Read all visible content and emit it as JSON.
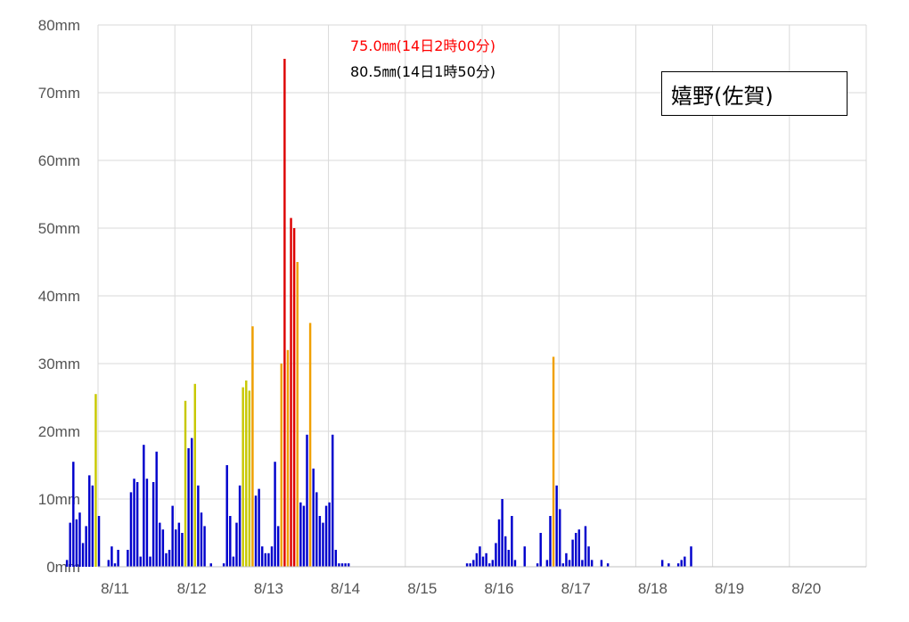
{
  "chart_data": {
    "type": "bar",
    "station": "嬉野(佐賀)",
    "ylim": [
      0,
      80
    ],
    "y_ticks": [
      "0mm",
      "10mm",
      "20mm",
      "30mm",
      "40mm",
      "50mm",
      "60mm",
      "70mm",
      "80mm"
    ],
    "day_labels": [
      "8/11",
      "8/12",
      "8/13",
      "8/14",
      "8/15",
      "8/16",
      "8/17",
      "8/18",
      "8/19",
      "8/20"
    ],
    "x_unit": "hour since 8/11 00:00",
    "grid": true,
    "annotations": {
      "max_1h": "75.0㎜(14日2時00分)",
      "max_10min_based": "80.5㎜(14日1時50分)"
    },
    "colors": {
      "lt20": "#0000cc",
      "20to30": "#c8c800",
      "30to50": "#f0a000",
      "ge50": "#dd0000",
      "grid": "#d9d9d9",
      "annotation_red": "#ff0000"
    },
    "bars": [
      [
        -3,
        1
      ],
      [
        -2,
        6.5
      ],
      [
        -1,
        15.5
      ],
      [
        0,
        7
      ],
      [
        1,
        8
      ],
      [
        2,
        3.5
      ],
      [
        3,
        6
      ],
      [
        4,
        13.5
      ],
      [
        5,
        12
      ],
      [
        6,
        25.5
      ],
      [
        7,
        7.5
      ],
      [
        10,
        1
      ],
      [
        11,
        3
      ],
      [
        12,
        0.5
      ],
      [
        13,
        2.5
      ],
      [
        16,
        2.5
      ],
      [
        17,
        11
      ],
      [
        18,
        13
      ],
      [
        19,
        12.5
      ],
      [
        20,
        1.5
      ],
      [
        21,
        18
      ],
      [
        22,
        13
      ],
      [
        23,
        1.5
      ],
      [
        24,
        12.5
      ],
      [
        25,
        17
      ],
      [
        26,
        6.5
      ],
      [
        27,
        5.5
      ],
      [
        28,
        2
      ],
      [
        29,
        2.5
      ],
      [
        30,
        9
      ],
      [
        31,
        5.5
      ],
      [
        32,
        6.5
      ],
      [
        33,
        5
      ],
      [
        34,
        24.5
      ],
      [
        35,
        17.5
      ],
      [
        36,
        19
      ],
      [
        37,
        27
      ],
      [
        38,
        12
      ],
      [
        39,
        8
      ],
      [
        40,
        6
      ],
      [
        42,
        0.5
      ],
      [
        46,
        0.5
      ],
      [
        47,
        15
      ],
      [
        48,
        7.5
      ],
      [
        49,
        1.5
      ],
      [
        50,
        6.5
      ],
      [
        51,
        12
      ],
      [
        52,
        26.5
      ],
      [
        53,
        27.5
      ],
      [
        54,
        26
      ],
      [
        55,
        35.5
      ],
      [
        56,
        10.5
      ],
      [
        57,
        11.5
      ],
      [
        58,
        3
      ],
      [
        59,
        2
      ],
      [
        60,
        2
      ],
      [
        61,
        3
      ],
      [
        62,
        15.5
      ],
      [
        63,
        6
      ],
      [
        64,
        30
      ],
      [
        65,
        75
      ],
      [
        66,
        32
      ],
      [
        67,
        51.5
      ],
      [
        68,
        50
      ],
      [
        69,
        45
      ],
      [
        70,
        9.5
      ],
      [
        71,
        9
      ],
      [
        72,
        19.5
      ],
      [
        73,
        36
      ],
      [
        74,
        14.5
      ],
      [
        75,
        11
      ],
      [
        76,
        7.5
      ],
      [
        77,
        6.5
      ],
      [
        78,
        9
      ],
      [
        79,
        9.5
      ],
      [
        80,
        19.5
      ],
      [
        81,
        2.5
      ],
      [
        82,
        0.5
      ],
      [
        83,
        0.5
      ],
      [
        84,
        0.5
      ],
      [
        85,
        0.5
      ],
      [
        122,
        0.5
      ],
      [
        123,
        0.5
      ],
      [
        124,
        1
      ],
      [
        125,
        2
      ],
      [
        126,
        3
      ],
      [
        127,
        1.5
      ],
      [
        128,
        2
      ],
      [
        129,
        0.5
      ],
      [
        130,
        1
      ],
      [
        131,
        3.5
      ],
      [
        132,
        7
      ],
      [
        133,
        10
      ],
      [
        134,
        4.5
      ],
      [
        135,
        2.5
      ],
      [
        136,
        7.5
      ],
      [
        137,
        1
      ],
      [
        140,
        3
      ],
      [
        144,
        0.5
      ],
      [
        145,
        5
      ],
      [
        147,
        1
      ],
      [
        148,
        7.5
      ],
      [
        149,
        31
      ],
      [
        150,
        12
      ],
      [
        151,
        8.5
      ],
      [
        152,
        0.5
      ],
      [
        153,
        2
      ],
      [
        154,
        1
      ],
      [
        155,
        4
      ],
      [
        156,
        5
      ],
      [
        157,
        5.5
      ],
      [
        158,
        1
      ],
      [
        159,
        6
      ],
      [
        160,
        3
      ],
      [
        161,
        1
      ],
      [
        164,
        1
      ],
      [
        166,
        0.5
      ],
      [
        183,
        1
      ],
      [
        185,
        0.5
      ],
      [
        188,
        0.5
      ],
      [
        189,
        1
      ],
      [
        190,
        1.5
      ],
      [
        192,
        3
      ]
    ]
  }
}
